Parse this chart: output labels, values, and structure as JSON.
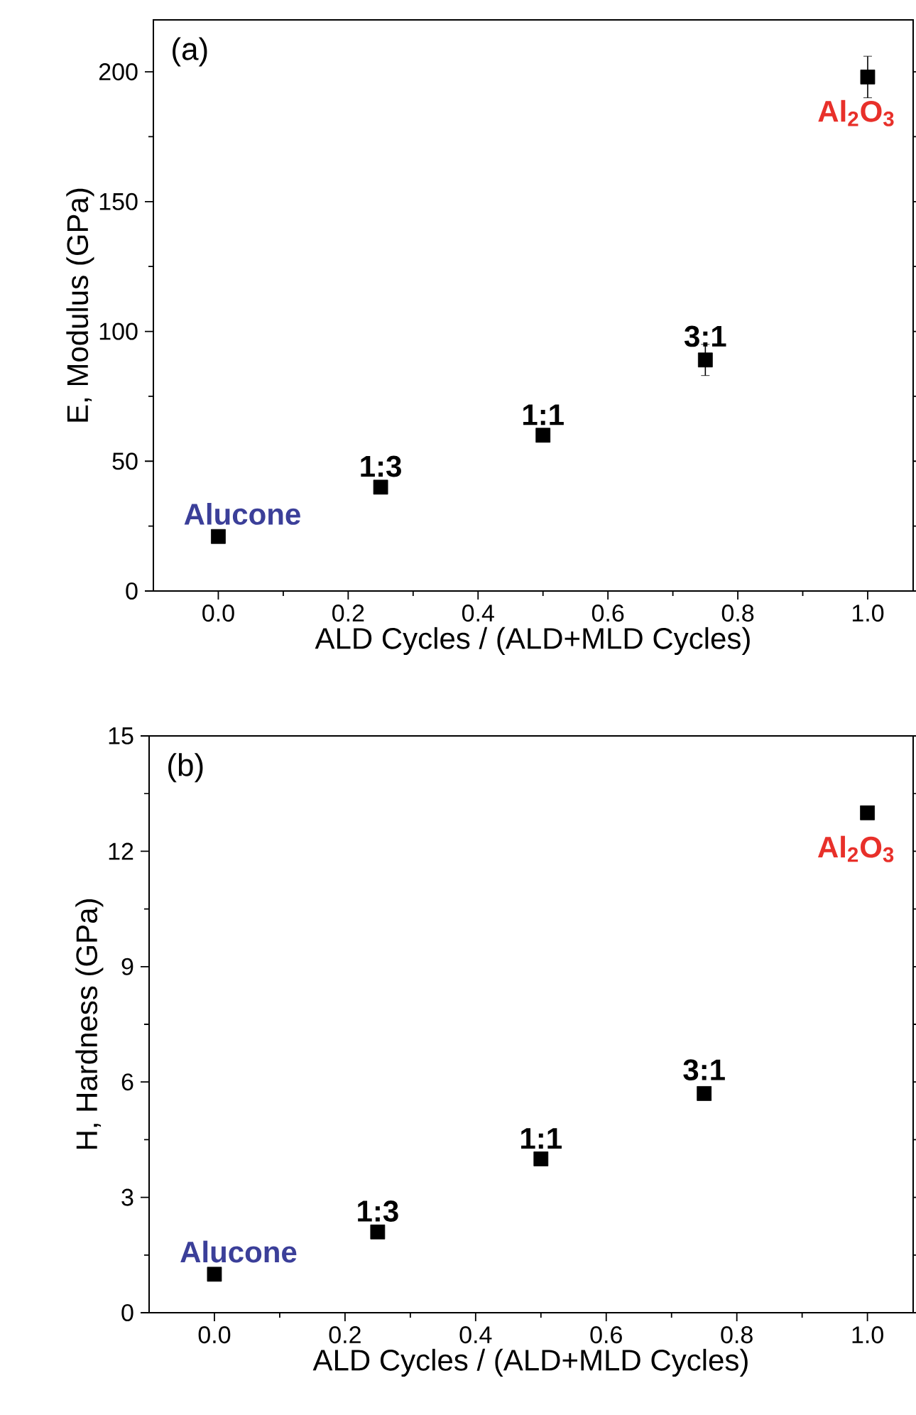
{
  "chart_data": [
    {
      "type": "scatter",
      "title": "(a)",
      "xlabel": "ALD Cycles / (ALD+MLD Cycles)",
      "ylabel": "E, Modulus (GPa)",
      "marker": "square",
      "grid": false,
      "x": [
        0,
        0.25,
        0.5,
        0.75,
        1.0
      ],
      "series": [
        {
          "color": "#000000",
          "values": [
            21,
            40,
            60,
            89,
            198
          ],
          "errors": [
            null,
            null,
            null,
            6,
            8
          ]
        }
      ],
      "xlim": [
        -0.1,
        1.07
      ],
      "ylim": [
        0,
        220
      ],
      "xticks": [
        {
          "value": 0,
          "label": "0.0"
        },
        {
          "value": 0.2,
          "label": "0.2"
        },
        {
          "value": 0.4,
          "label": "0.4"
        },
        {
          "value": 0.6,
          "label": "0.6"
        },
        {
          "value": 0.8,
          "label": "0.8"
        },
        {
          "value": 1.0,
          "label": "1.0"
        }
      ],
      "yticks": [
        0,
        50,
        100,
        150,
        200
      ],
      "annotations": [
        {
          "text": "Alucone",
          "x": 0,
          "y": 21
        },
        {
          "text": "1:3",
          "x": 0.25,
          "y": 40
        },
        {
          "text": "1:1",
          "x": 0.5,
          "y": 60
        },
        {
          "text": "3:1",
          "x": 0.75,
          "y": 89
        },
        {
          "text": "Al$_{2}$O$_{3}$",
          "x": 1.0,
          "y": 198
        }
      ]
    },
    {
      "type": "scatter",
      "title": "(b)",
      "xlabel": "ALD Cycles / (ALD+MLD Cycles)",
      "ylabel": "H, Hardness (GPa)",
      "marker": "square",
      "grid": false,
      "x": [
        0,
        0.25,
        0.5,
        0.75,
        1.0
      ],
      "series": [
        {
          "color": "#000000",
          "values": [
            1.0,
            2.1,
            4.0,
            5.7,
            13.0
          ]
        }
      ],
      "xlim": [
        -0.1,
        1.07
      ],
      "ylim": [
        0,
        15
      ],
      "xticks": [
        {
          "value": 0,
          "label": "0.0"
        },
        {
          "value": 0.2,
          "label": "0.2"
        },
        {
          "value": 0.4,
          "label": "0.4"
        },
        {
          "value": 0.6,
          "label": "0.6"
        },
        {
          "value": 0.8,
          "label": "0.8"
        },
        {
          "value": 1.0,
          "label": "1.0"
        }
      ],
      "yticks": [
        0,
        3,
        6,
        9,
        12,
        15
      ],
      "annotations": [
        {
          "text": "Alucone",
          "x": 0,
          "y": 1.0
        },
        {
          "text": "1:3",
          "x": 0.25,
          "y": 2.1
        },
        {
          "text": "1:1",
          "x": 0.5,
          "y": 4.0
        },
        {
          "text": "3:1",
          "x": 0.75,
          "y": 5.7
        },
        {
          "text": "Al$_{2}$O$_{3}$",
          "x": 1.0,
          "y": 13.0
        }
      ]
    }
  ]
}
